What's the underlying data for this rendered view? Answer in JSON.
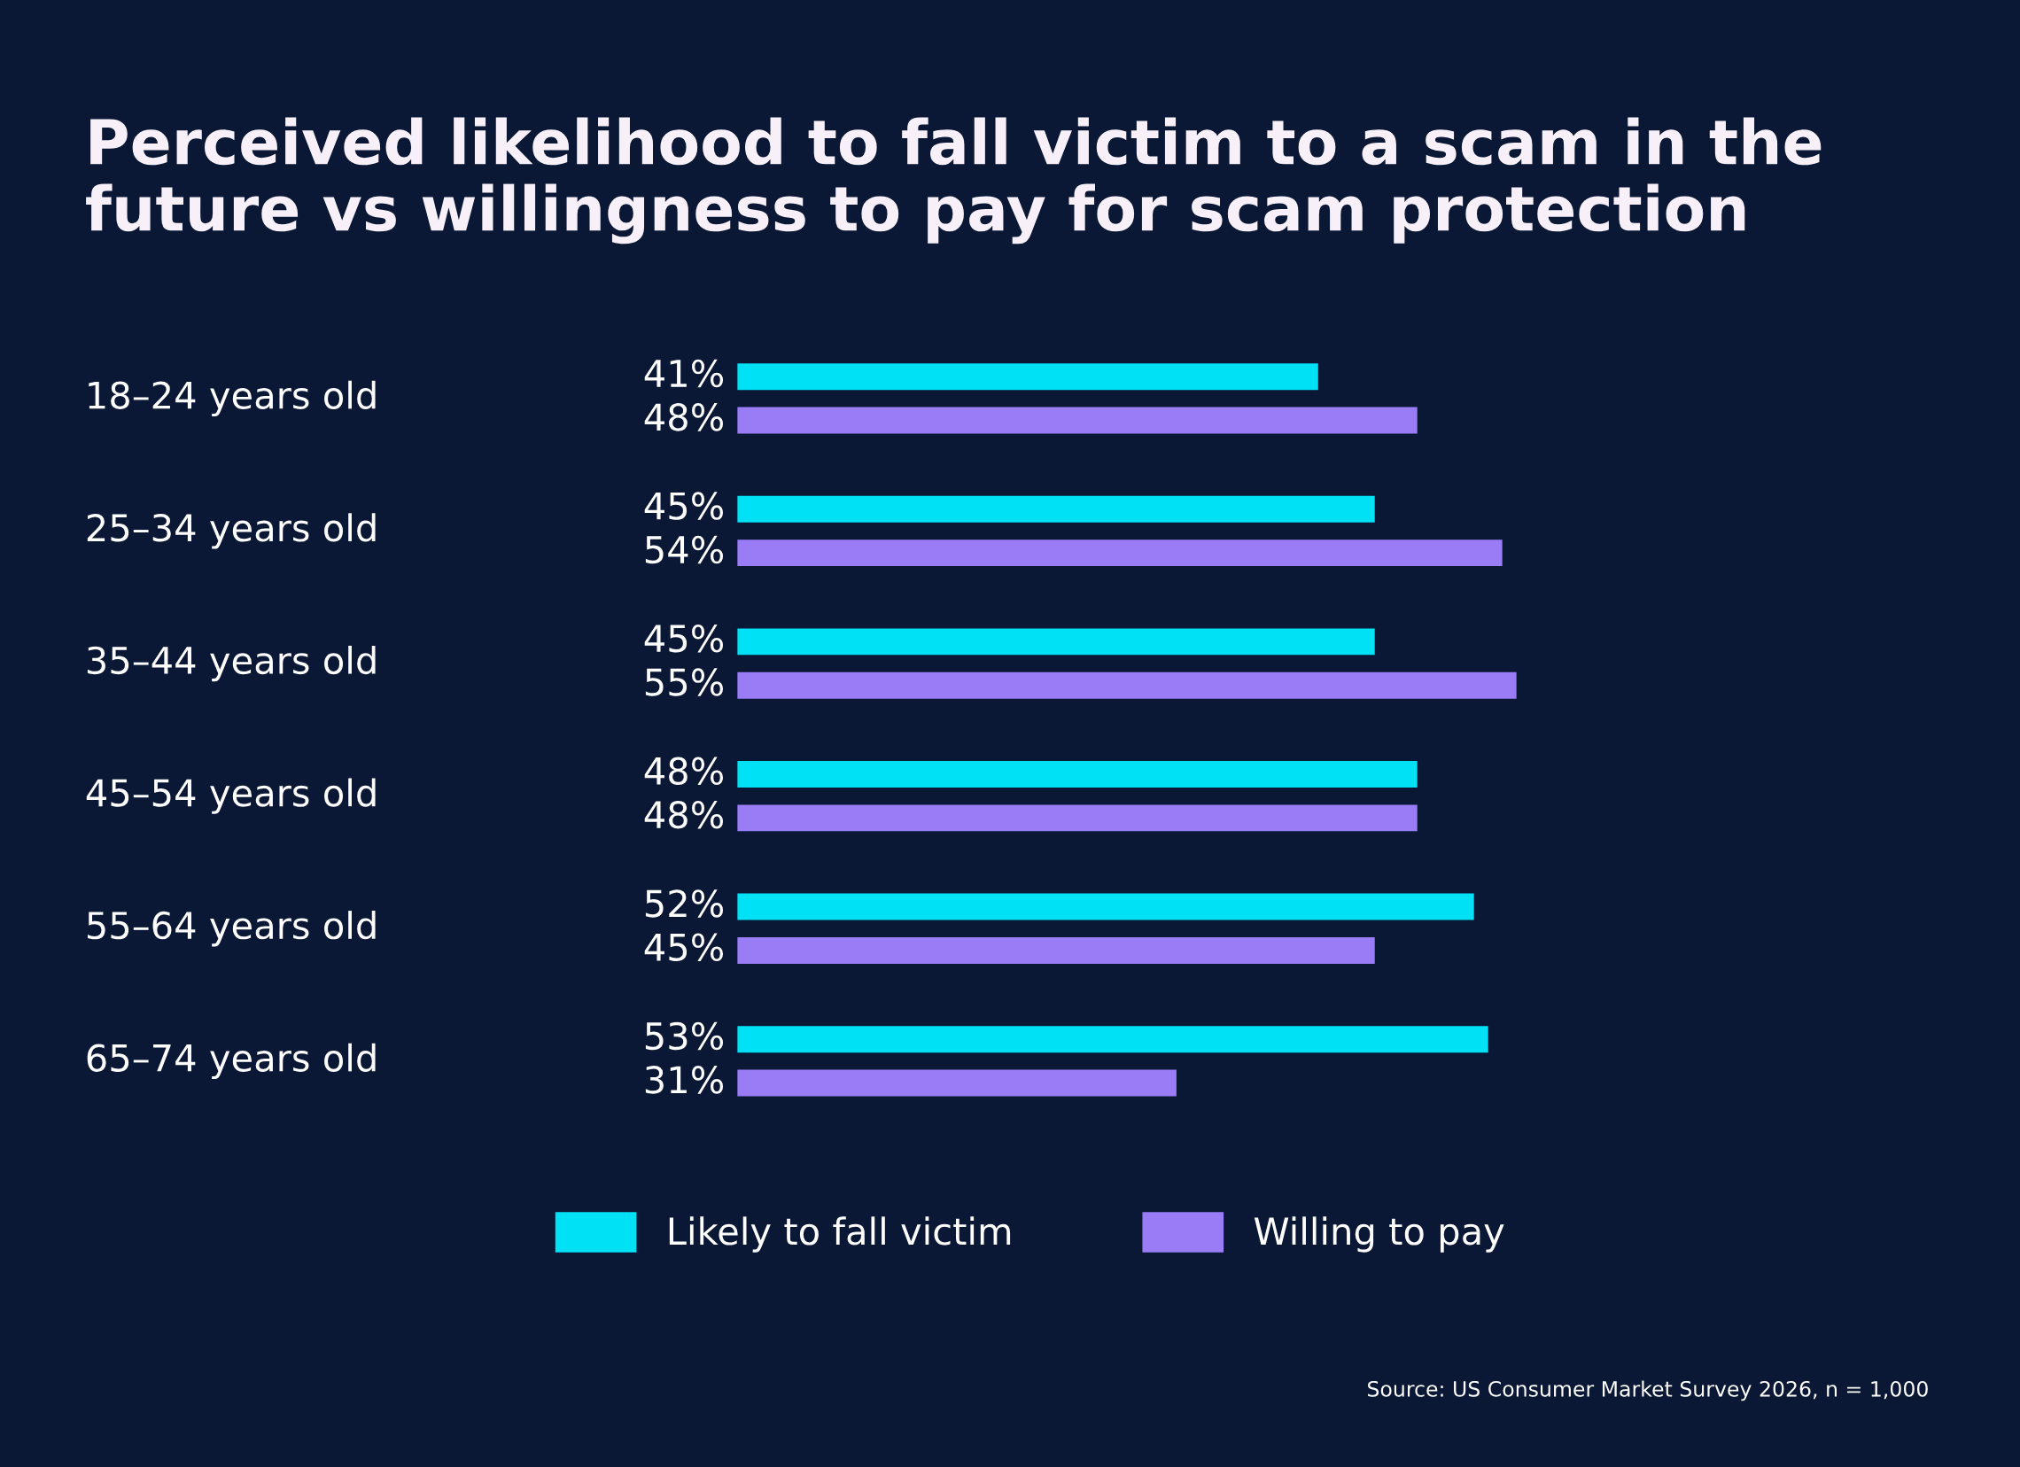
{
  "chart_data": {
    "type": "bar",
    "orientation": "horizontal",
    "title": "Perceived likelihood to fall victim to a scam in the\nfuture vs willingness to pay for scam protection",
    "categories": [
      "18–24 years old",
      "25–34 years old",
      "35–44 years old",
      "45–54 years old",
      "55–64 years old",
      "65–74 years old"
    ],
    "series": [
      {
        "name": "Likely to fall victim",
        "color": "#00e1f5",
        "values": [
          41,
          45,
          45,
          48,
          52,
          53
        ],
        "value_labels": [
          "41%",
          "45%",
          "45%",
          "48%",
          "52%",
          "53%"
        ]
      },
      {
        "name": "Willing to pay",
        "color": "#9a7cf6",
        "values": [
          48,
          54,
          55,
          48,
          45,
          31
        ],
        "value_labels": [
          "48%",
          "54%",
          "55%",
          "48%",
          "45%",
          "31%"
        ]
      }
    ],
    "legend": "bottom",
    "annotations": [
      "Source: US Consumer Market Survey 2026, n = 1,000"
    ]
  }
}
